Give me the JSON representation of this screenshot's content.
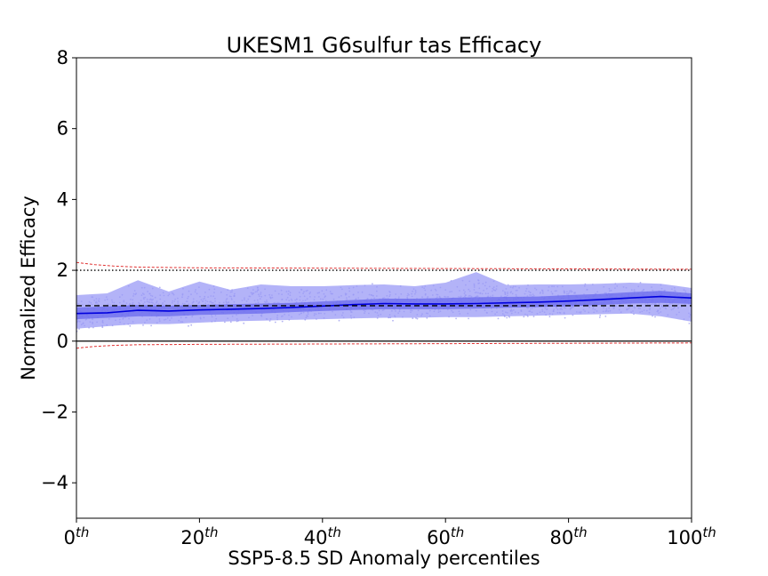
{
  "chart_data": {
    "type": "scatter",
    "title": "UKESM1 G6sulfur tas Efficacy",
    "xlabel": "SSP5-8.5 SD Anomaly percentiles",
    "ylabel": "Normalized Efficacy",
    "xlim": [
      0,
      100
    ],
    "ylim": [
      -5,
      8
    ],
    "xticks": [
      {
        "value": 0,
        "base": "0",
        "sup": "th"
      },
      {
        "value": 20,
        "base": "20",
        "sup": "th"
      },
      {
        "value": 40,
        "base": "40",
        "sup": "th"
      },
      {
        "value": 60,
        "base": "60",
        "sup": "th"
      },
      {
        "value": 80,
        "base": "80",
        "sup": "th"
      },
      {
        "value": 100,
        "base": "100",
        "sup": "th"
      }
    ],
    "yticks": [
      {
        "value": -4,
        "label": "−4"
      },
      {
        "value": -2,
        "label": "−2"
      },
      {
        "value": 0,
        "label": "0"
      },
      {
        "value": 2,
        "label": "2"
      },
      {
        "value": 4,
        "label": "4"
      },
      {
        "value": 6,
        "label": "6"
      },
      {
        "value": 8,
        "label": "8"
      }
    ],
    "reference_lines": [
      {
        "y": 0,
        "style": "solid",
        "color": "#000000"
      },
      {
        "y": 1,
        "style": "dashed",
        "color": "#000000"
      },
      {
        "y": 2,
        "style": "dotted",
        "color": "#000000"
      }
    ],
    "envelope": {
      "color": "#e03030",
      "x": [
        0,
        3,
        6,
        10,
        20,
        40,
        60,
        80,
        100
      ],
      "upper": [
        2.22,
        2.16,
        2.12,
        2.09,
        2.07,
        2.06,
        2.05,
        2.04,
        2.03
      ],
      "lower": [
        -0.2,
        -0.15,
        -0.12,
        -0.1,
        -0.09,
        -0.08,
        -0.07,
        -0.06,
        -0.05
      ]
    },
    "colors": {
      "scatter": "#9999ee",
      "outer_band": "#9999f5",
      "inner_band": "#6a6aee",
      "median": "#0000dd"
    },
    "x": [
      0,
      5,
      10,
      15,
      20,
      25,
      30,
      35,
      40,
      45,
      50,
      55,
      60,
      65,
      70,
      75,
      80,
      85,
      90,
      95,
      100
    ],
    "median": [
      0.78,
      0.8,
      0.87,
      0.85,
      0.88,
      0.9,
      0.92,
      0.95,
      0.99,
      1.03,
      1.06,
      1.05,
      1.05,
      1.06,
      1.08,
      1.1,
      1.13,
      1.17,
      1.22,
      1.26,
      1.22
    ],
    "inner_band": {
      "lower": [
        0.62,
        0.66,
        0.7,
        0.7,
        0.74,
        0.76,
        0.78,
        0.82,
        0.85,
        0.88,
        0.9,
        0.9,
        0.9,
        0.92,
        0.94,
        0.96,
        0.98,
        1.02,
        1.06,
        1.08,
        1.05
      ],
      "upper": [
        0.95,
        0.98,
        1.02,
        1.0,
        1.02,
        1.04,
        1.06,
        1.08,
        1.12,
        1.16,
        1.2,
        1.2,
        1.22,
        1.24,
        1.25,
        1.26,
        1.3,
        1.33,
        1.38,
        1.42,
        1.35
      ]
    },
    "outer_band": {
      "lower": [
        0.35,
        0.42,
        0.48,
        0.48,
        0.52,
        0.56,
        0.58,
        0.6,
        0.62,
        0.64,
        0.66,
        0.66,
        0.68,
        0.68,
        0.7,
        0.72,
        0.74,
        0.76,
        0.78,
        0.7,
        0.55
      ],
      "upper": [
        1.3,
        1.35,
        1.72,
        1.4,
        1.68,
        1.45,
        1.6,
        1.55,
        1.55,
        1.58,
        1.6,
        1.55,
        1.65,
        1.95,
        1.58,
        1.6,
        1.6,
        1.62,
        1.65,
        1.62,
        1.5
      ]
    }
  }
}
